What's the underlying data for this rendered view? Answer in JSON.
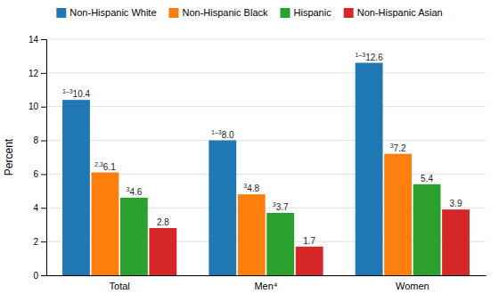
{
  "chart_data": {
    "type": "bar",
    "categories": [
      "Total",
      "Men⁴",
      "Women"
    ],
    "series": [
      {
        "name": "Non-Hispanic White",
        "values": [
          10.4,
          8.0,
          12.6
        ],
        "footnotes": [
          "1–3",
          "1–3",
          "1–3"
        ]
      },
      {
        "name": "Non-Hispanic Black",
        "values": [
          6.1,
          4.8,
          7.2
        ],
        "footnotes": [
          "2,3",
          "3",
          "3"
        ]
      },
      {
        "name": "Hispanic",
        "values": [
          4.6,
          3.7,
          5.4
        ],
        "footnotes": [
          "3",
          "3",
          null
        ]
      },
      {
        "name": "Non-Hispanic Asian",
        "values": [
          2.8,
          1.7,
          3.9
        ]
      }
    ],
    "ylabel": "Percent",
    "ylim": [
      0,
      14
    ],
    "yticks": [
      0,
      2,
      4,
      6,
      8,
      10,
      12,
      14
    ],
    "grid": true,
    "legend": "top",
    "data_labels": true
  }
}
